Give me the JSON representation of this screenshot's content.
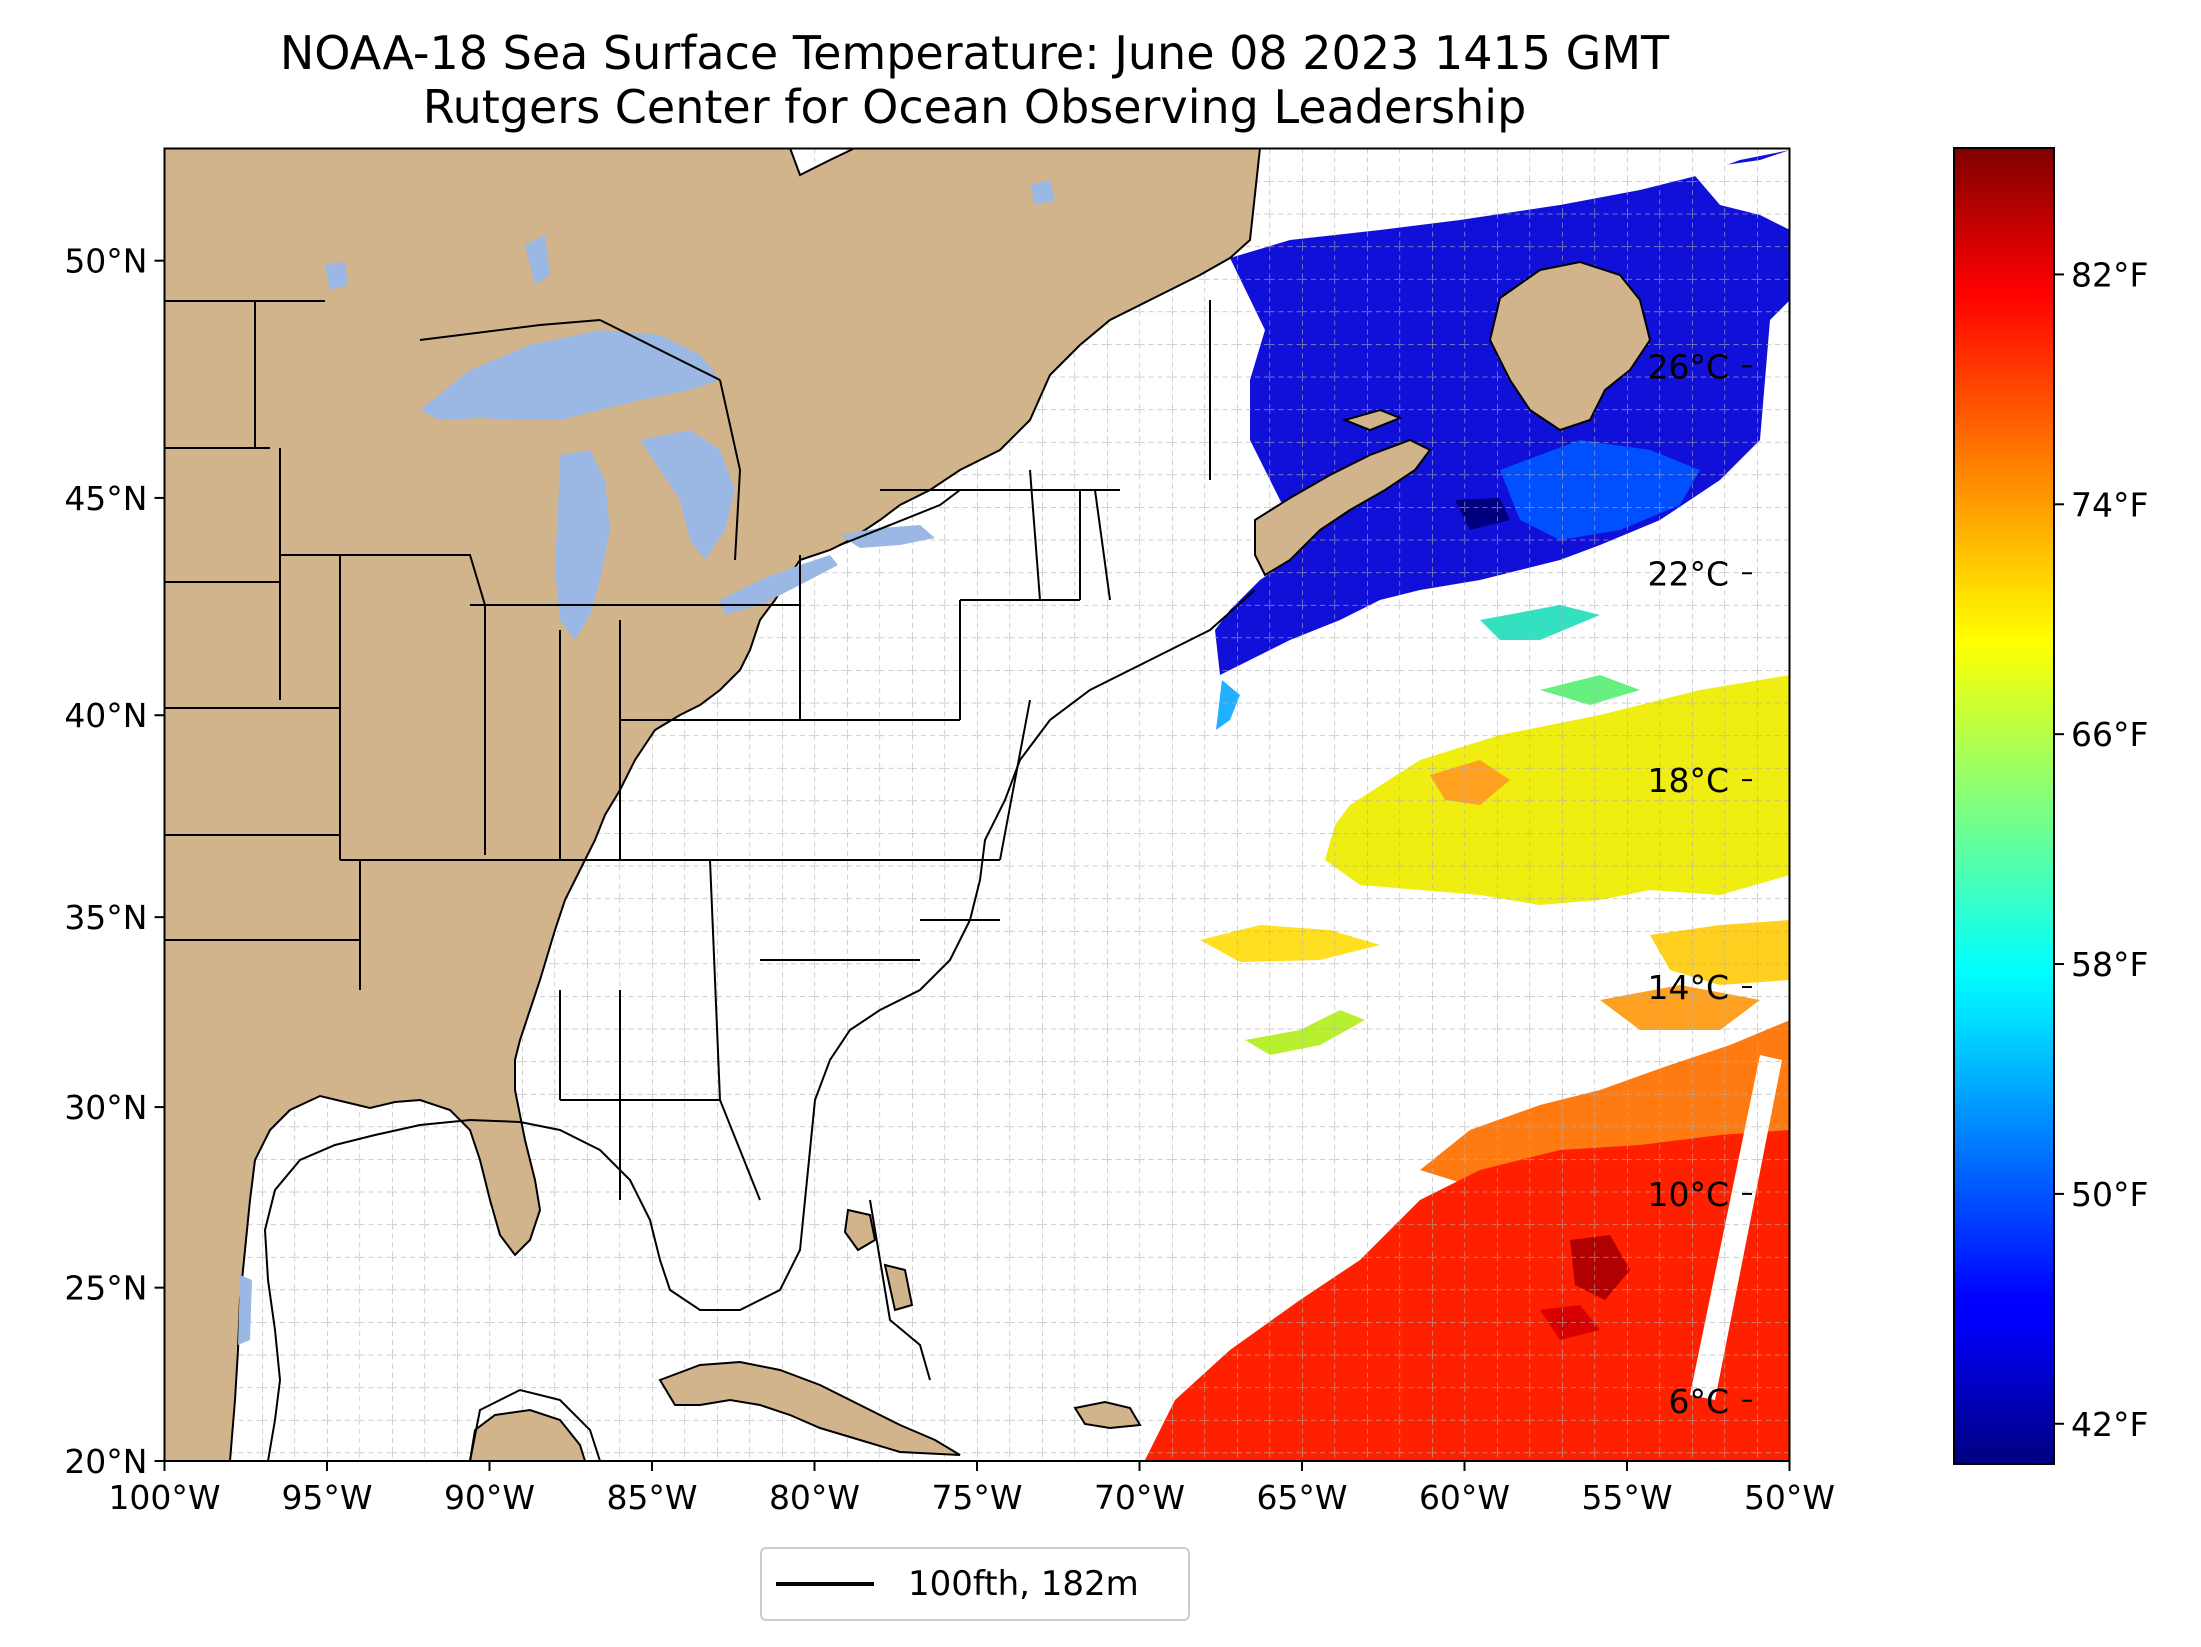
{
  "title": {
    "line1": "NOAA-18 Sea Surface Temperature: June 08 2023 1415 GMT",
    "line2": "Rutgers Center for Ocean Observing Leadership"
  },
  "map": {
    "lon_range": [
      -100,
      -50
    ],
    "lat_range": [
      20,
      52.2
    ],
    "lon_ticks": [
      "100°W",
      "95°W",
      "90°W",
      "85°W",
      "80°W",
      "75°W",
      "70°W",
      "65°W",
      "60°W",
      "55°W",
      "50°W"
    ],
    "lat_ticks": [
      "20°N",
      "25°N",
      "30°N",
      "35°N",
      "40°N",
      "45°N",
      "50°N"
    ],
    "gridlines": "dashed, every 1°",
    "colors": {
      "land": "#d2b48c",
      "lakes": "#9ab8e3",
      "ocean_no_data": "#ffffff",
      "grid": "#b0b0b0",
      "coastline": "#000000"
    }
  },
  "colorbar": {
    "colormap": "jet",
    "celsius_ticks": [
      "6°C",
      "10°C",
      "14°C",
      "18°C",
      "22°C",
      "26°C"
    ],
    "fahrenheit_ticks": [
      "42°F",
      "50°F",
      "58°F",
      "66°F",
      "74°F",
      "82°F"
    ],
    "range_f": [
      40.6,
      86.4
    ]
  },
  "legend": {
    "label": "100fth, 182m"
  }
}
